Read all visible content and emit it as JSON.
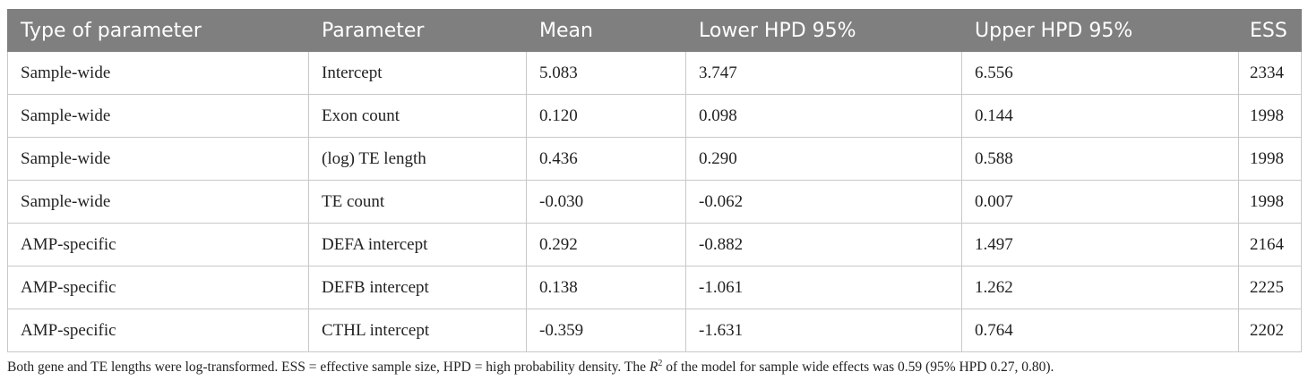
{
  "table": {
    "headers": [
      "Type of parameter",
      "Parameter",
      "Mean",
      "Lower HPD 95%",
      "Upper HPD 95%",
      "ESS"
    ],
    "rows": [
      [
        "Sample-wide",
        "Intercept",
        "5.083",
        "3.747",
        "6.556",
        "2334"
      ],
      [
        "Sample-wide",
        "Exon count",
        "0.120",
        "0.098",
        "0.144",
        "1998"
      ],
      [
        "Sample-wide",
        "(log) TE length",
        "0.436",
        "0.290",
        "0.588",
        "1998"
      ],
      [
        "Sample-wide",
        "TE count",
        "-0.030",
        "-0.062",
        "0.007",
        "1998"
      ],
      [
        "AMP-specific",
        "DEFA intercept",
        "0.292",
        "-0.882",
        "1.497",
        "2164"
      ],
      [
        "AMP-specific",
        "DEFB intercept",
        "0.138",
        "-1.061",
        "1.262",
        "2225"
      ],
      [
        "AMP-specific",
        "CTHL intercept",
        "-0.359",
        "-1.631",
        "0.764",
        "2202"
      ]
    ]
  },
  "footnote": {
    "part1": "Both gene and TE lengths were log-transformed. ESS = effective sample size, HPD = high probability density. The ",
    "r_symbol": "R",
    "r_sup": "2",
    "part2": " of the model for sample wide effects was 0.59 (95% HPD 0.27, 0.80)."
  }
}
